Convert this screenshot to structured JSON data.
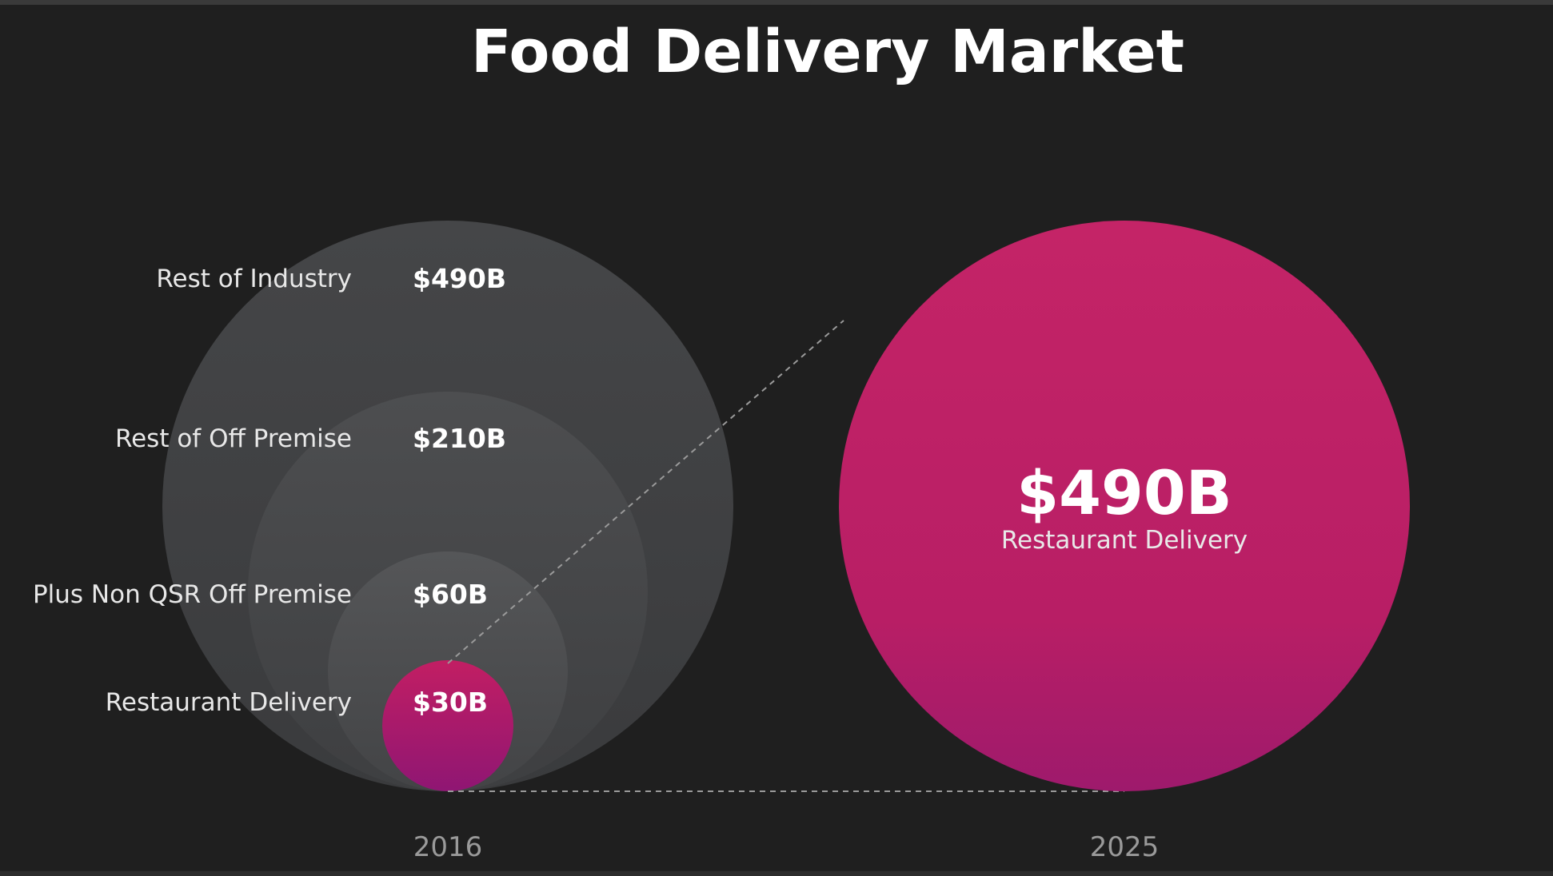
{
  "chart_data": {
    "type": "bubble",
    "title": "Food Delivery Market",
    "groups": [
      {
        "year": "2016",
        "segments": [
          {
            "label": "Rest of Industry",
            "value_label": "$490B",
            "value": 490,
            "color": "#414244"
          },
          {
            "label": "Rest of Off Premise",
            "value_label": "$210B",
            "value": 210,
            "color": "#4a4b4d"
          },
          {
            "label": "Plus Non QSR Off Premise",
            "value_label": "$60B",
            "value": 60,
            "color": "#525355"
          },
          {
            "label": "Restaurant Delivery",
            "value_label": "$30B",
            "value": 30,
            "color": "#b81c66"
          }
        ]
      },
      {
        "year": "2025",
        "segments": [
          {
            "label": "Restaurant Delivery",
            "value_label": "$490B",
            "value": 490,
            "color": "#c02366"
          }
        ]
      }
    ]
  }
}
